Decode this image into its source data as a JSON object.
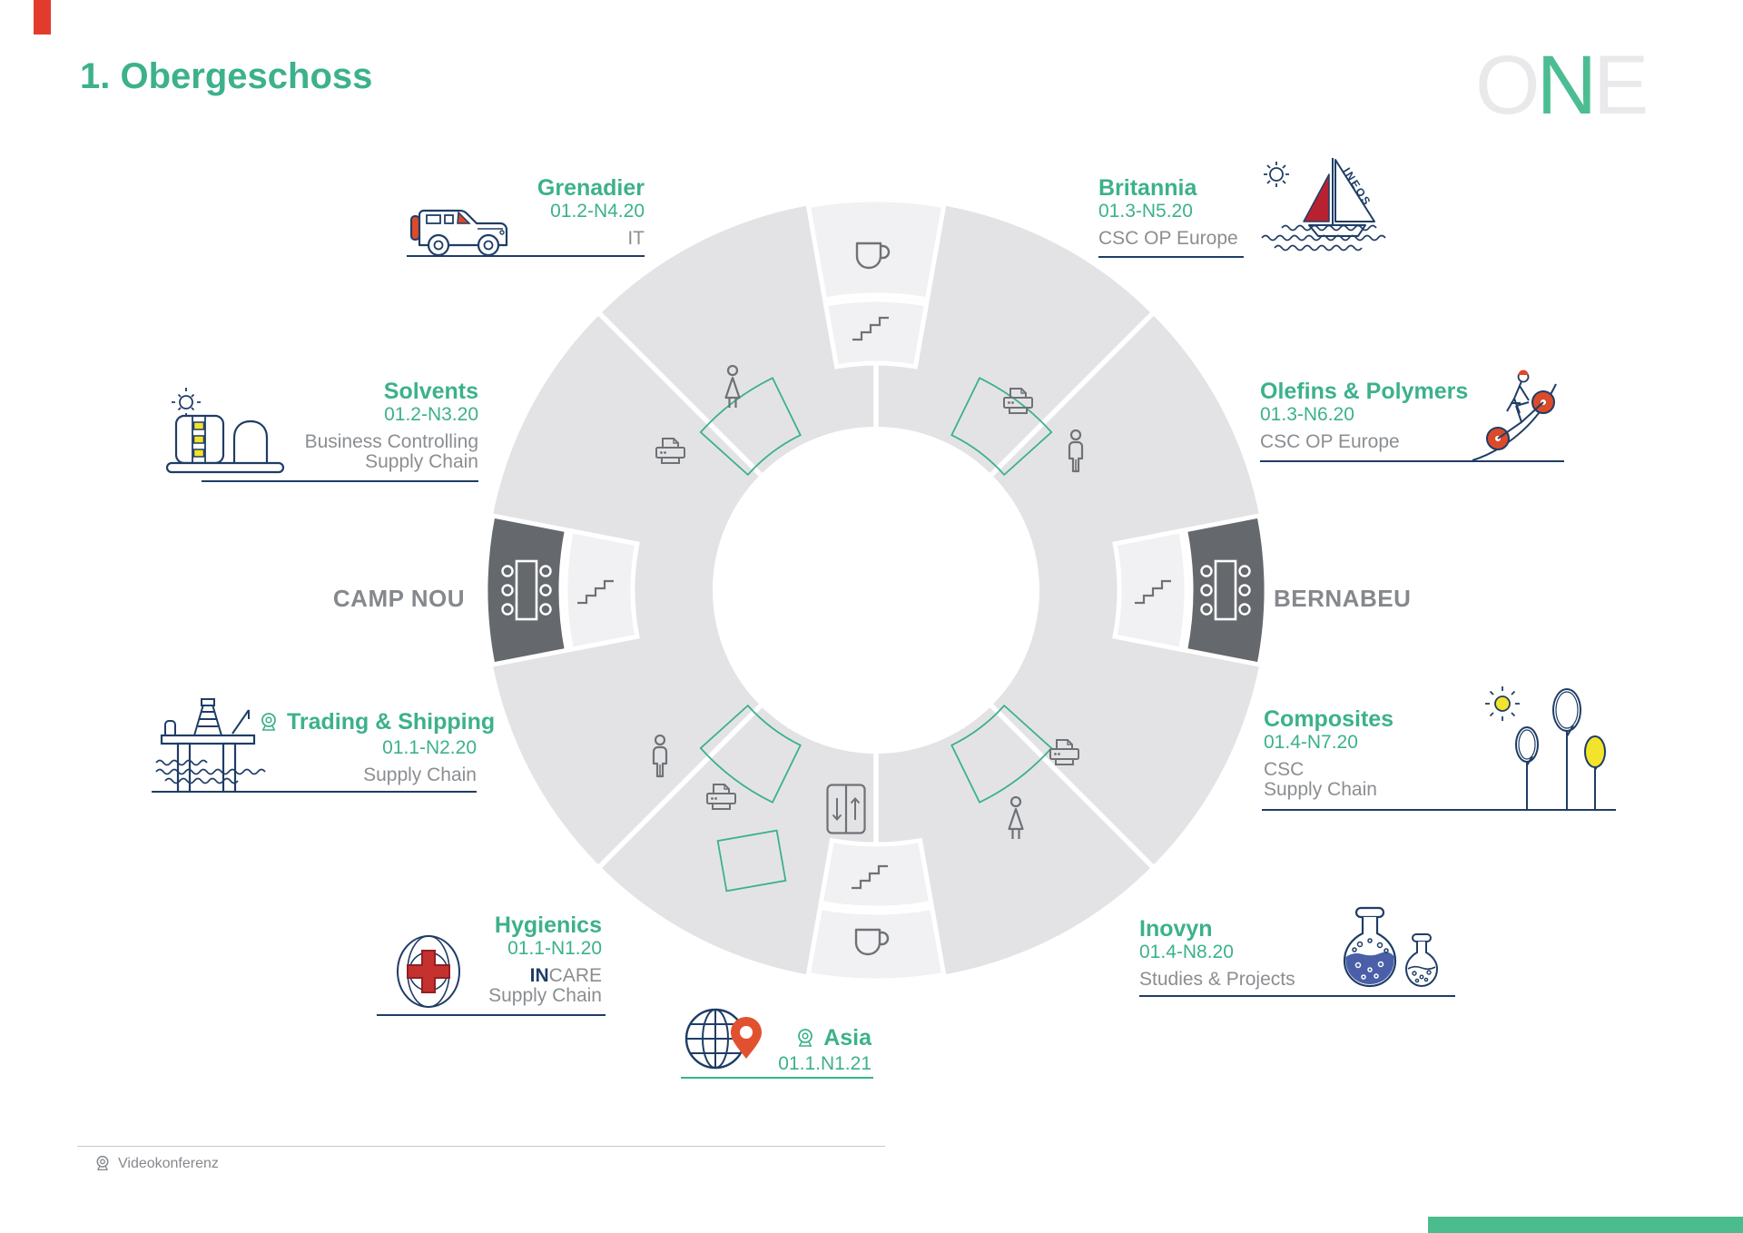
{
  "page": {
    "title": "1. Obergeschoss",
    "legend_videoconference": "Videokonferenz"
  },
  "logo": {
    "letters": [
      {
        "char": "O",
        "muted": true
      },
      {
        "char": "N",
        "muted": false
      },
      {
        "char": "E",
        "muted": true
      }
    ]
  },
  "rooms": {
    "grenadier": {
      "name": "Grenadier",
      "code": "01.2-N4.20",
      "dept1": "IT"
    },
    "britannia": {
      "name": "Britannia",
      "code": "01.3-N5.20",
      "dept1": "CSC OP Europe"
    },
    "solvents": {
      "name": "Solvents",
      "code": "01.2-N3.20",
      "dept1": "Business Controlling",
      "dept2": "Supply Chain"
    },
    "olefins": {
      "name": "Olefins & Polymers",
      "code": "01.3-N6.20",
      "dept1": "CSC OP Europe"
    },
    "trading": {
      "name": "Trading & Shipping",
      "code": "01.1-N2.20",
      "dept1": "Supply Chain",
      "video": true
    },
    "composites": {
      "name": "Composites",
      "code": "01.4-N7.20",
      "dept1": "CSC",
      "dept2": "Supply Chain"
    },
    "hygienics": {
      "name": "Hygienics",
      "code": "01.1-N1.20",
      "dept1_strong": "IN",
      "dept1_rest": "CARE",
      "dept2": "Supply Chain"
    },
    "inovyn": {
      "name": "Inovyn",
      "code": "01.4-N8.20",
      "dept1": "Studies & Projects"
    },
    "asia": {
      "name": "Asia",
      "code": "01.1.N1.21",
      "video": true
    }
  },
  "meeting_rooms": {
    "left": "CAMP NOU",
    "right": "BERNABEU"
  },
  "facilities": [
    "coffee-icon",
    "stairs-icon",
    "womens-wc-icon",
    "mens-wc-icon",
    "printer-icon",
    "elevator-icon",
    "meeting-table-icon",
    "videoconference-icon"
  ],
  "illustrations": {
    "britannia_sail_text": "INEOS"
  },
  "colors": {
    "accent_green": "#3CB18C",
    "logo_green": "#4CBD92",
    "logo_muted": "#E9E9EB",
    "text_gray": "#8B8E91",
    "hall_gray": "#85888C",
    "navy": "#1F3D66",
    "ring_gray": "#E3E3E5",
    "ring_light": "#F1F1F3",
    "ring_dark": "#65686D",
    "icon_gray": "#6E7276",
    "red": "#DD4A2A",
    "cross_red": "#C5312E",
    "yellow": "#F3E32B",
    "blue_liquid": "#4A5FA8",
    "footer_green": "#4BBC8E",
    "corner_red": "#E23B2E"
  }
}
